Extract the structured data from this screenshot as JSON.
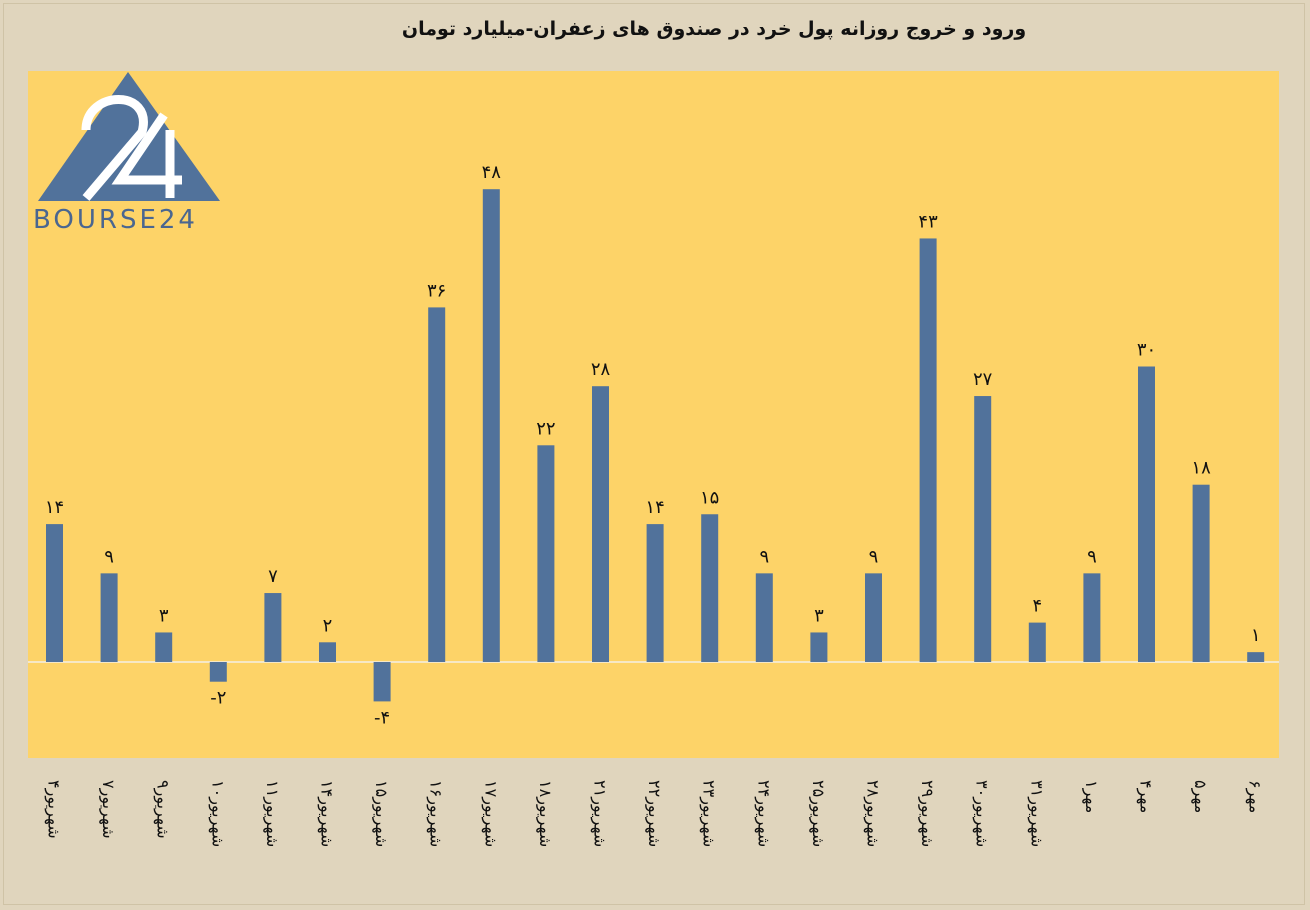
{
  "title": "ورود و خروج روزانه پول خرد در صندوق های زعفران-میلیارد تومان",
  "logo": {
    "text": "BOURSE24"
  },
  "colors": {
    "background": "#e0d5bd",
    "plot": "#fdd368",
    "bar": "#51729b"
  },
  "chart_data": {
    "type": "bar",
    "categories": [
      "۴شهریور",
      "۷شهریور",
      "۹شهریور",
      "۱۰شهریور",
      "۱۱شهریور",
      "۱۴شهریور",
      "۱۵شهریور",
      "۱۶شهریور",
      "۱۷شهریور",
      "۱۸شهریور",
      "۲۱شهریور",
      "۲۲شهریور",
      "۲۳شهریور",
      "۲۴شهریور",
      "۲۵شهریور",
      "۲۸شهریور",
      "۲۹شهریور",
      "۳۰شهریور",
      "۳۱شهریور",
      "۱مهر",
      "۴مهر",
      "۵مهر",
      "۶مهر"
    ],
    "values": [
      14,
      9,
      3,
      -2,
      7,
      2,
      -4,
      36,
      48,
      22,
      28,
      14,
      15,
      9,
      3,
      9,
      43,
      27,
      4,
      9,
      30,
      18,
      1
    ],
    "data_labels": [
      "۱۴",
      "۹",
      "۳",
      "-۲",
      "۷",
      "۲",
      "-۴",
      "۳۶",
      "۴۸",
      "۲۲",
      "۲۸",
      "۱۴",
      "۱۵",
      "۹",
      "۳",
      "۹",
      "۴۳",
      "۲۷",
      "۴",
      "۹",
      "۳۰",
      "۱۸",
      "۱"
    ],
    "ylim": [
      -10,
      60
    ],
    "grid": false,
    "legend": "none"
  }
}
